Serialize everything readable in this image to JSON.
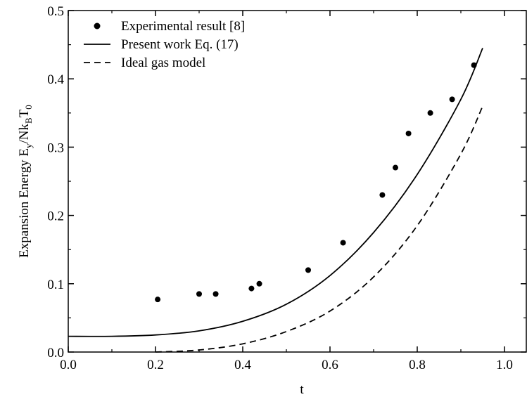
{
  "chart_data": {
    "type": "line",
    "xlabel": "t",
    "ylabel": "Expansion Energy  E",
    "ylabel_y_sub": "y",
    "ylabel_mid": "/Nk",
    "ylabel_B_sub": "B",
    "ylabel_T": "T",
    "ylabel_zero_sub": "0",
    "xlim": [
      0.0,
      1.05
    ],
    "ylim": [
      0.0,
      0.5
    ],
    "x_ticks": [
      "0.0",
      "0.2",
      "0.4",
      "0.6",
      "0.8",
      "1.0"
    ],
    "y_ticks": [
      "0.0",
      "0.1",
      "0.2",
      "0.3",
      "0.4",
      "0.5"
    ],
    "legend_placement": "top-left",
    "grid": false,
    "series": [
      {
        "name": "Experimental result [8]",
        "style": "markers",
        "color": "#000000",
        "points": [
          [
            0.205,
            0.077
          ],
          [
            0.3,
            0.085
          ],
          [
            0.338,
            0.085
          ],
          [
            0.42,
            0.093
          ],
          [
            0.438,
            0.1
          ],
          [
            0.55,
            0.12
          ],
          [
            0.63,
            0.16
          ],
          [
            0.72,
            0.23
          ],
          [
            0.75,
            0.27
          ],
          [
            0.78,
            0.32
          ],
          [
            0.83,
            0.35
          ],
          [
            0.88,
            0.37
          ],
          [
            0.93,
            0.42
          ]
        ]
      },
      {
        "name": "Present work Eq. (17)",
        "style": "solid",
        "color": "#000000",
        "points": [
          [
            0.0,
            0.023
          ],
          [
            0.1,
            0.023
          ],
          [
            0.2,
            0.025
          ],
          [
            0.3,
            0.031
          ],
          [
            0.4,
            0.045
          ],
          [
            0.5,
            0.07
          ],
          [
            0.6,
            0.112
          ],
          [
            0.7,
            0.175
          ],
          [
            0.8,
            0.26
          ],
          [
            0.9,
            0.37
          ],
          [
            0.95,
            0.445
          ]
        ]
      },
      {
        "name": "Ideal gas model",
        "style": "dashed",
        "color": "#000000",
        "points": [
          [
            0.2,
            0.0
          ],
          [
            0.3,
            0.003
          ],
          [
            0.4,
            0.012
          ],
          [
            0.5,
            0.03
          ],
          [
            0.6,
            0.06
          ],
          [
            0.7,
            0.11
          ],
          [
            0.8,
            0.185
          ],
          [
            0.9,
            0.29
          ],
          [
            0.95,
            0.36
          ]
        ]
      }
    ]
  }
}
